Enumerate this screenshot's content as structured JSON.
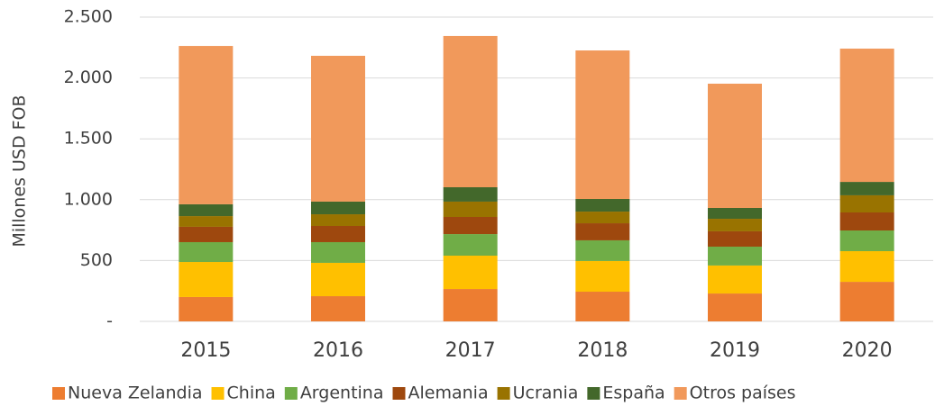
{
  "chart_data": {
    "type": "bar",
    "stacked": true,
    "y_label": "Millones USD FOB",
    "categories": [
      "2015",
      "2016",
      "2017",
      "2018",
      "2019",
      "2020"
    ],
    "series": [
      {
        "name": "Nueva Zelandia",
        "color": "#ed7d31",
        "values": [
          200,
          207,
          266,
          244,
          229,
          325
        ]
      },
      {
        "name": "China",
        "color": "#ffc000",
        "values": [
          288,
          274,
          274,
          252,
          230,
          252
        ]
      },
      {
        "name": "Argentina",
        "color": "#70ad47",
        "values": [
          163,
          170,
          177,
          170,
          155,
          170
        ]
      },
      {
        "name": "Alemania",
        "color": "#9e480e",
        "values": [
          126,
          133,
          141,
          140,
          126,
          148
        ]
      },
      {
        "name": "Ucrania",
        "color": "#997300",
        "values": [
          88,
          96,
          126,
          96,
          103,
          141
        ]
      },
      {
        "name": "España",
        "color": "#43682b",
        "values": [
          97,
          104,
          118,
          104,
          89,
          110
        ]
      },
      {
        "name": "Otros países",
        "color": "#f1995b",
        "values": [
          1301,
          1198,
          1243,
          1220,
          1021,
          1095
        ]
      }
    ],
    "ylim": [
      0,
      2500
    ],
    "yticks": [
      {
        "value": 0,
        "label": "-"
      },
      500,
      {
        "value": 1000,
        "label": "1.000"
      },
      {
        "value": 1500,
        "label": "1.500"
      },
      {
        "value": 2000,
        "label": "2.000"
      },
      {
        "value": 2500,
        "label": "2.500"
      }
    ],
    "grid": true,
    "legend": "bottom"
  }
}
